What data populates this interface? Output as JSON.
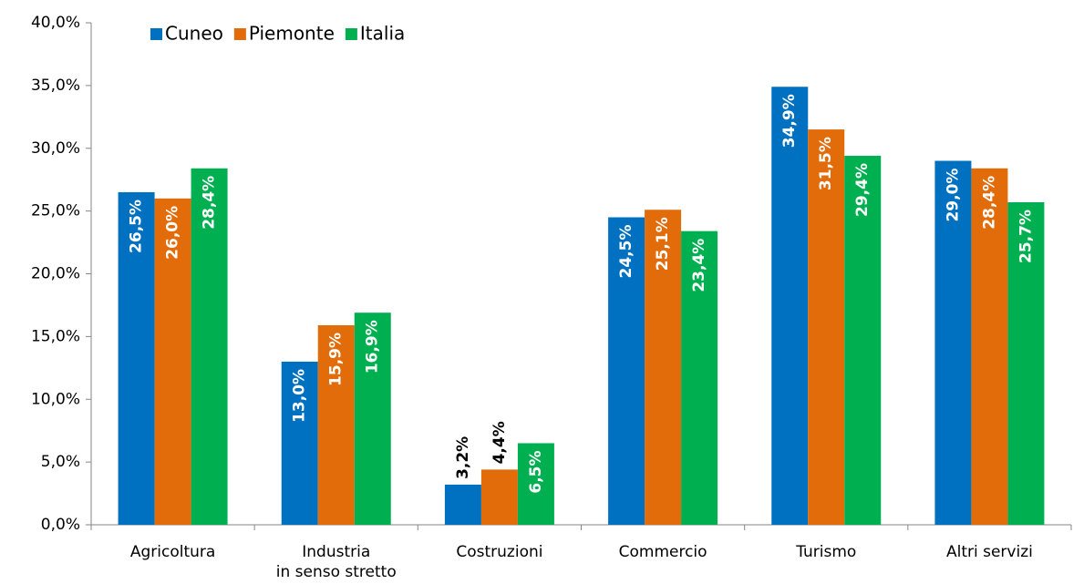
{
  "chart_data": {
    "type": "bar",
    "categories": [
      "Agricoltura",
      "Industria\nin senso stretto",
      "Costruzioni",
      "Commercio",
      "Turismo",
      "Altri servizi"
    ],
    "series": [
      {
        "name": "Cuneo",
        "color": "#0070c0",
        "values": [
          26.5,
          13.0,
          3.2,
          24.5,
          34.9,
          29.0
        ],
        "value_labels": [
          "26,5%",
          "13,0%",
          "3,2%",
          "24,5%",
          "34,9%",
          "29,0%"
        ]
      },
      {
        "name": "Piemonte",
        "color": "#e36c0a",
        "values": [
          26.0,
          15.9,
          4.4,
          25.1,
          31.5,
          28.4
        ],
        "value_labels": [
          "26,0%",
          "15,9%",
          "4,4%",
          "25,1%",
          "31,5%",
          "28,4%"
        ]
      },
      {
        "name": "Italia",
        "color": "#00b050",
        "values": [
          28.4,
          16.9,
          6.5,
          23.4,
          29.4,
          25.7
        ],
        "value_labels": [
          "28,4%",
          "16,9%",
          "6,5%",
          "23,4%",
          "29,4%",
          "25,7%"
        ]
      }
    ],
    "ylim": [
      0,
      40
    ],
    "yticks": [
      {
        "value": 0,
        "label": "0,0%"
      },
      {
        "value": 5,
        "label": "5,0%"
      },
      {
        "value": 10,
        "label": "10,0%"
      },
      {
        "value": 15,
        "label": "15,0%"
      },
      {
        "value": 20,
        "label": "20,0%"
      },
      {
        "value": 25,
        "label": "25,0%"
      },
      {
        "value": 30,
        "label": "30,0%"
      },
      {
        "value": 35,
        "label": "35,0%"
      },
      {
        "value": 40,
        "label": "40,0%"
      }
    ],
    "grid": false,
    "legend": "top-left"
  }
}
